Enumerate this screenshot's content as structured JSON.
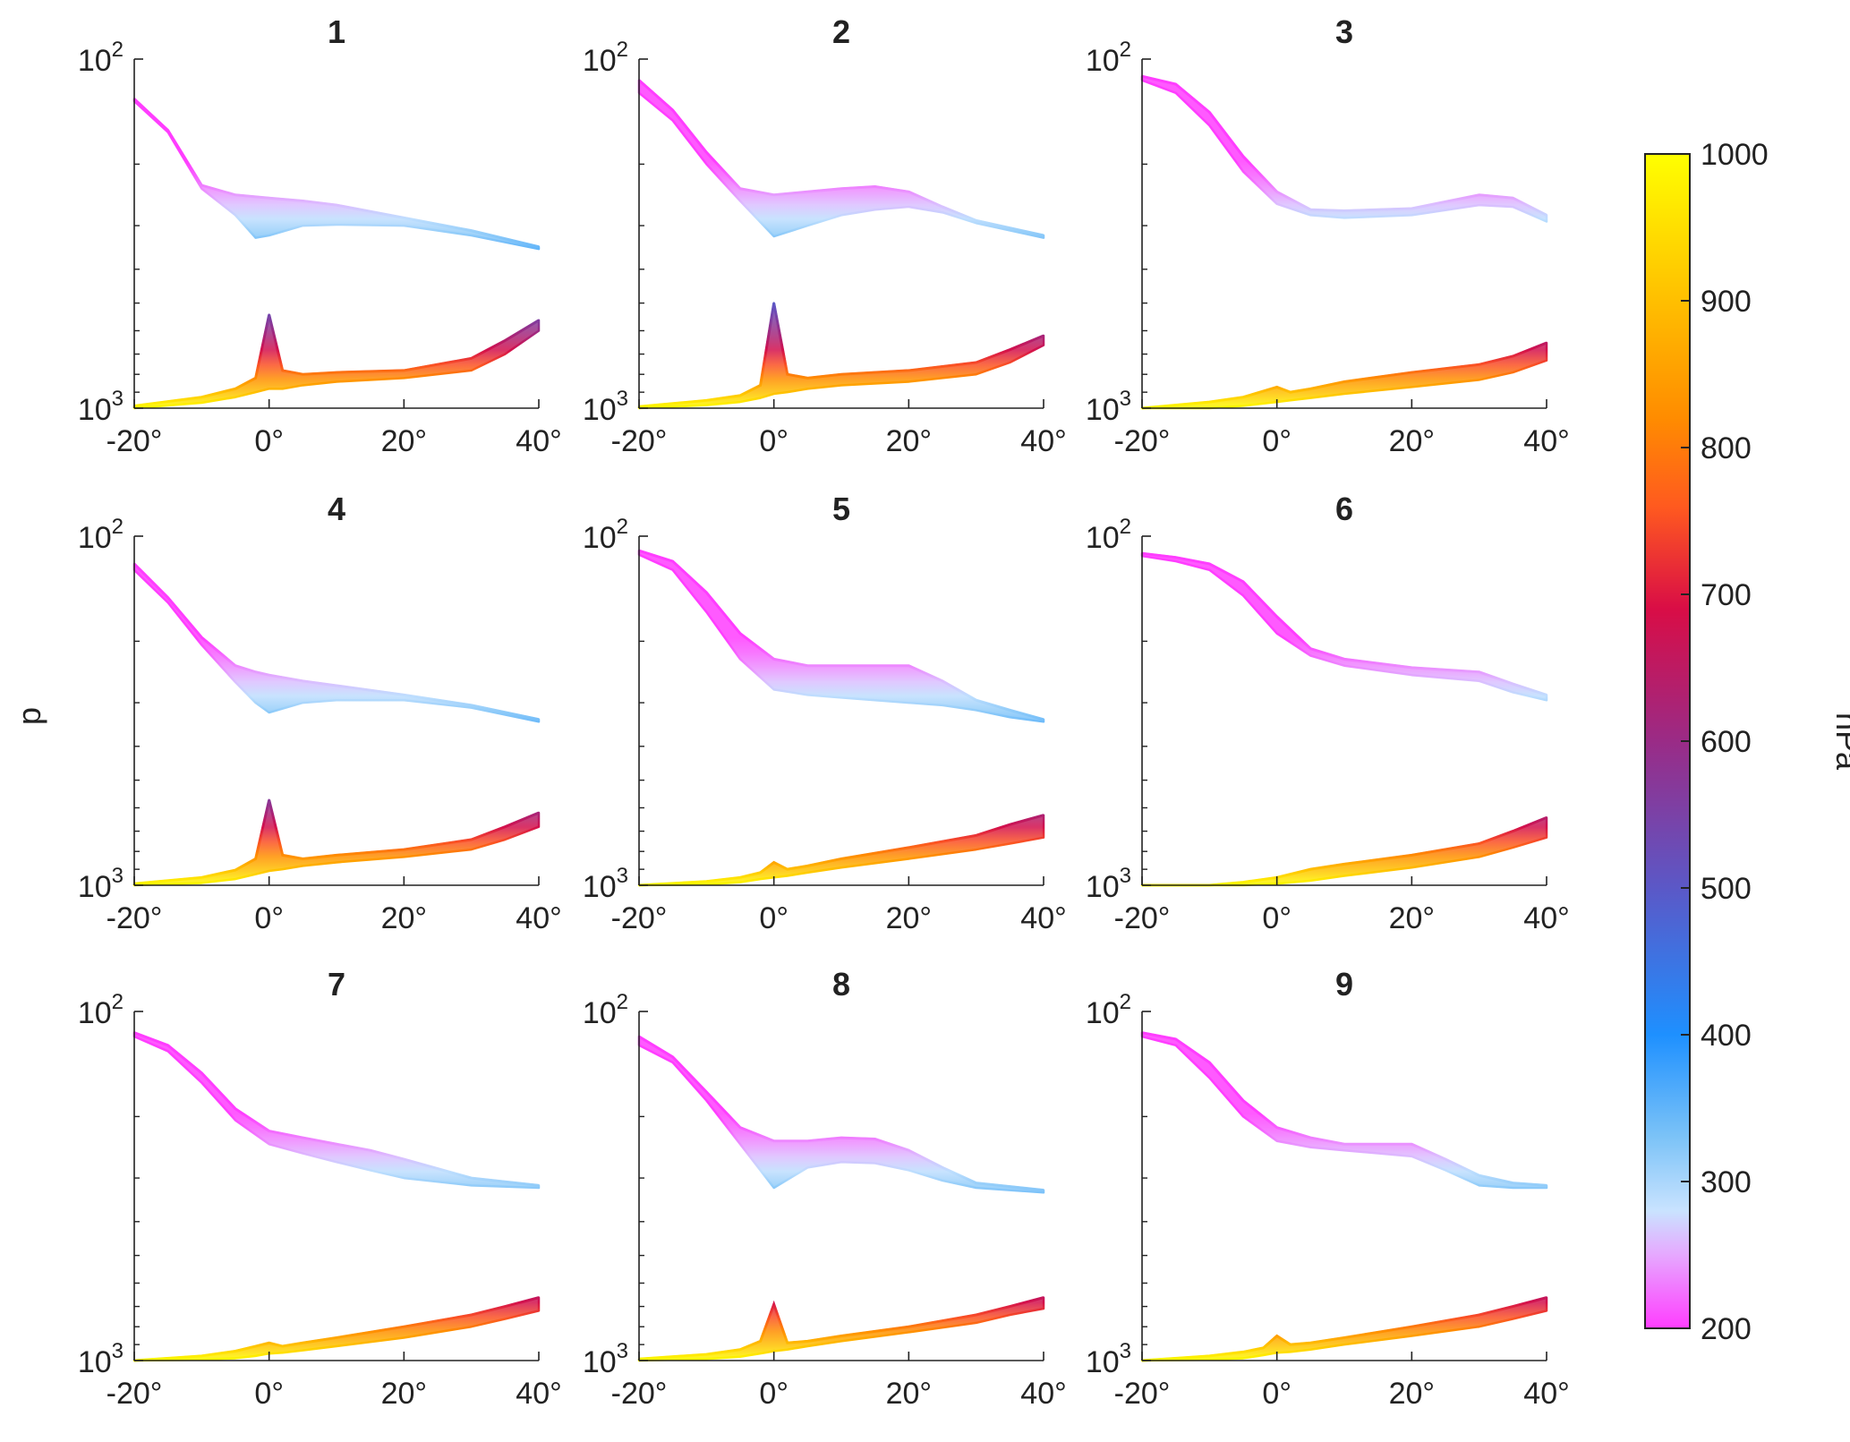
{
  "chart_data": {
    "type": "area",
    "ylabel": "p",
    "yscale": "log",
    "y_ticks": [
      {
        "base": "10",
        "exp": "2",
        "value": 100
      },
      {
        "base": "10",
        "exp": "3",
        "value": 1000
      }
    ],
    "x_ticks": [
      {
        "value": -20,
        "label": "-20°"
      },
      {
        "value": 0,
        "label": "0°"
      },
      {
        "value": 20,
        "label": "20°"
      },
      {
        "value": 40,
        "label": "40°"
      }
    ],
    "xlim": [
      -20,
      40
    ],
    "ylim": [
      100,
      1000
    ],
    "grid": false,
    "colorbar": {
      "label": "hPa",
      "range": [
        200,
        1000
      ],
      "ticks": [
        "1000",
        "900",
        "800",
        "700",
        "600",
        "500",
        "400",
        "300",
        "200"
      ],
      "tick_values": [
        1000,
        900,
        800,
        700,
        600,
        500,
        400,
        300,
        200
      ],
      "colors": [
        {
          "value": 200,
          "color": "#ff3dff"
        },
        {
          "value": 250,
          "color": "#e6a8ff"
        },
        {
          "value": 280,
          "color": "#c9e3ff"
        },
        {
          "value": 330,
          "color": "#7cc3f7"
        },
        {
          "value": 400,
          "color": "#1e90ff"
        },
        {
          "value": 500,
          "color": "#5b58c7"
        },
        {
          "value": 600,
          "color": "#9a2b86"
        },
        {
          "value": 690,
          "color": "#d90d46"
        },
        {
          "value": 760,
          "color": "#ff5a1f"
        },
        {
          "value": 820,
          "color": "#ff8c00"
        },
        {
          "value": 900,
          "color": "#ffbf00"
        },
        {
          "value": 1000,
          "color": "#ffff00"
        }
      ]
    },
    "panels": [
      {
        "title": "1",
        "upper": {
          "x": [
            -20,
            -15,
            -10,
            -5,
            -2,
            0,
            5,
            10,
            20,
            30,
            40
          ],
          "top": [
            130,
            160,
            230,
            245,
            248,
            250,
            255,
            262,
            285,
            310,
            345
          ],
          "bottom": [
            132,
            162,
            235,
            280,
            325,
            320,
            300,
            298,
            300,
            320,
            350
          ]
        },
        "lower": {
          "x": [
            -20,
            -10,
            -5,
            -2,
            0,
            2,
            5,
            10,
            20,
            30,
            35,
            40
          ],
          "top": [
            985,
            930,
            880,
            820,
            540,
            780,
            800,
            790,
            780,
            720,
            640,
            560
          ],
          "bottom": [
            1000,
            965,
            930,
            900,
            880,
            880,
            860,
            840,
            820,
            780,
            700,
            600
          ],
          "spike_top": 540
        }
      },
      {
        "title": "2",
        "upper": {
          "x": [
            -20,
            -15,
            -10,
            -5,
            0,
            5,
            10,
            15,
            20,
            25,
            30,
            40
          ],
          "top": [
            115,
            140,
            185,
            235,
            245,
            240,
            235,
            232,
            240,
            265,
            290,
            320
          ],
          "bottom": [
            125,
            150,
            200,
            255,
            322,
            300,
            280,
            270,
            265,
            275,
            295,
            325
          ]
        },
        "lower": {
          "x": [
            -20,
            -10,
            -5,
            -2,
            0,
            2,
            5,
            10,
            20,
            30,
            35,
            40
          ],
          "top": [
            990,
            950,
            920,
            860,
            500,
            800,
            820,
            800,
            780,
            740,
            680,
            620
          ],
          "bottom": [
            1000,
            980,
            960,
            935,
            910,
            900,
            880,
            860,
            840,
            800,
            740,
            660
          ],
          "spike_top": 500
        }
      },
      {
        "title": "3",
        "upper": {
          "x": [
            -20,
            -15,
            -10,
            -5,
            0,
            5,
            10,
            20,
            30,
            35,
            40
          ],
          "top": [
            112,
            118,
            142,
            190,
            240,
            270,
            272,
            268,
            245,
            250,
            280
          ],
          "bottom": [
            115,
            125,
            155,
            210,
            260,
            280,
            285,
            280,
            262,
            265,
            292
          ]
        },
        "lower": {
          "x": [
            -20,
            -10,
            -5,
            0,
            2,
            5,
            10,
            20,
            30,
            35,
            40
          ],
          "top": [
            1000,
            960,
            930,
            870,
            900,
            880,
            840,
            790,
            750,
            710,
            650
          ],
          "bottom": [
            1000,
            1000,
            985,
            960,
            950,
            935,
            910,
            870,
            830,
            790,
            730
          ],
          "spike_top": 870
        }
      },
      {
        "title": "4",
        "upper": {
          "x": [
            -20,
            -15,
            -10,
            -5,
            -2,
            0,
            5,
            10,
            20,
            30,
            40
          ],
          "top": [
            120,
            150,
            195,
            235,
            245,
            250,
            260,
            268,
            285,
            305,
            335
          ],
          "bottom": [
            125,
            155,
            205,
            262,
            300,
            320,
            300,
            295,
            295,
            310,
            340
          ]
        },
        "lower": {
          "x": [
            -20,
            -10,
            -5,
            -2,
            0,
            2,
            5,
            10,
            20,
            30,
            35,
            40
          ],
          "top": [
            990,
            950,
            905,
            840,
            570,
            820,
            840,
            820,
            790,
            740,
            680,
            620
          ],
          "bottom": [
            1000,
            985,
            960,
            930,
            910,
            900,
            880,
            860,
            830,
            790,
            740,
            680
          ],
          "spike_top": 570
        }
      },
      {
        "title": "5",
        "upper": {
          "x": [
            -20,
            -15,
            -10,
            -5,
            0,
            5,
            10,
            15,
            20,
            25,
            30,
            35,
            40
          ],
          "top": [
            110,
            118,
            145,
            190,
            225,
            235,
            235,
            235,
            235,
            260,
            295,
            315,
            335
          ],
          "bottom": [
            113,
            125,
            165,
            225,
            275,
            285,
            290,
            295,
            300,
            305,
            315,
            330,
            340
          ]
        },
        "lower": {
          "x": [
            -20,
            -10,
            -5,
            -2,
            0,
            2,
            5,
            10,
            20,
            30,
            35,
            40
          ],
          "top": [
            1000,
            975,
            950,
            920,
            860,
            900,
            880,
            840,
            780,
            720,
            670,
            630
          ],
          "bottom": [
            1000,
            995,
            980,
            960,
            950,
            940,
            920,
            890,
            840,
            790,
            760,
            730
          ],
          "spike_top": 860
        }
      },
      {
        "title": "6",
        "upper": {
          "x": [
            -20,
            -15,
            -10,
            -5,
            0,
            5,
            10,
            20,
            30,
            35,
            40
          ],
          "top": [
            112,
            115,
            120,
            135,
            170,
            210,
            225,
            238,
            245,
            265,
            285
          ],
          "bottom": [
            114,
            118,
            125,
            148,
            190,
            220,
            235,
            250,
            260,
            280,
            295
          ]
        },
        "lower": {
          "x": [
            -20,
            -10,
            -5,
            0,
            5,
            10,
            20,
            30,
            35,
            40
          ],
          "top": [
            1000,
            1000,
            980,
            950,
            900,
            870,
            820,
            760,
            700,
            640
          ],
          "bottom": [
            1000,
            1000,
            1000,
            990,
            970,
            940,
            890,
            830,
            780,
            730
          ]
        }
      },
      {
        "title": "7",
        "upper": {
          "x": [
            -20,
            -15,
            -10,
            -5,
            0,
            5,
            10,
            15,
            20,
            30,
            40
          ],
          "top": [
            115,
            125,
            150,
            190,
            220,
            230,
            240,
            250,
            265,
            300,
            315
          ],
          "bottom": [
            118,
            130,
            160,
            205,
            240,
            255,
            270,
            285,
            300,
            315,
            320
          ]
        },
        "lower": {
          "x": [
            -20,
            -10,
            -5,
            -2,
            0,
            2,
            5,
            10,
            20,
            30,
            35,
            40
          ],
          "top": [
            1000,
            970,
            940,
            910,
            890,
            910,
            890,
            860,
            800,
            740,
            700,
            660
          ],
          "bottom": [
            1000,
            995,
            985,
            970,
            955,
            950,
            935,
            910,
            860,
            800,
            760,
            720
          ],
          "spike_top": 890
        }
      },
      {
        "title": "8",
        "upper": {
          "x": [
            -20,
            -15,
            -10,
            -5,
            0,
            5,
            10,
            15,
            20,
            25,
            30,
            40
          ],
          "top": [
            118,
            135,
            170,
            215,
            235,
            235,
            230,
            232,
            250,
            280,
            310,
            325
          ],
          "bottom": [
            125,
            140,
            180,
            240,
            320,
            280,
            270,
            272,
            285,
            305,
            320,
            330
          ]
        },
        "lower": {
          "x": [
            -20,
            -10,
            -5,
            -2,
            0,
            2,
            5,
            10,
            20,
            30,
            35,
            40
          ],
          "top": [
            990,
            960,
            930,
            880,
            690,
            890,
            880,
            850,
            800,
            740,
            700,
            660
          ],
          "bottom": [
            1000,
            990,
            975,
            955,
            940,
            930,
            910,
            880,
            830,
            780,
            740,
            710
          ],
          "spike_top": 690
        }
      },
      {
        "title": "9",
        "upper": {
          "x": [
            -20,
            -15,
            -10,
            -5,
            0,
            5,
            10,
            15,
            20,
            25,
            30,
            35,
            40
          ],
          "top": [
            115,
            120,
            140,
            180,
            215,
            230,
            240,
            240,
            240,
            265,
            295,
            310,
            315
          ],
          "bottom": [
            118,
            125,
            155,
            200,
            235,
            245,
            250,
            255,
            260,
            285,
            315,
            320,
            320
          ]
        },
        "lower": {
          "x": [
            -20,
            -10,
            -5,
            -2,
            0,
            2,
            5,
            10,
            20,
            30,
            35,
            40
          ],
          "top": [
            1000,
            970,
            945,
            920,
            850,
            900,
            890,
            860,
            800,
            740,
            700,
            660
          ],
          "bottom": [
            1000,
            995,
            985,
            965,
            950,
            945,
            930,
            900,
            850,
            800,
            760,
            720
          ],
          "spike_top": 850
        }
      }
    ]
  }
}
